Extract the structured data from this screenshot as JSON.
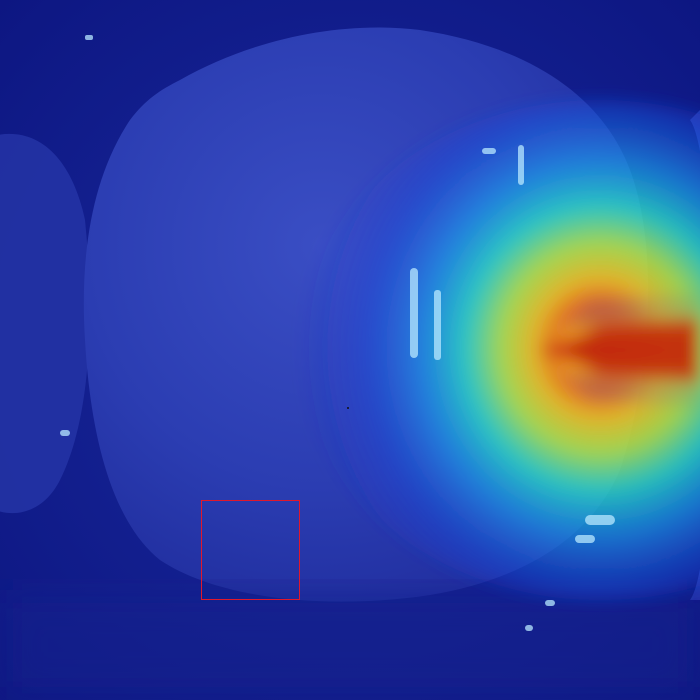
{
  "image": {
    "subject": "tooth",
    "overlay": "heatmap",
    "colormap": "jet",
    "colors": {
      "background": "#0f1a8a",
      "tooth": "#2a3fb8",
      "roi_box": "#e0182c"
    }
  }
}
